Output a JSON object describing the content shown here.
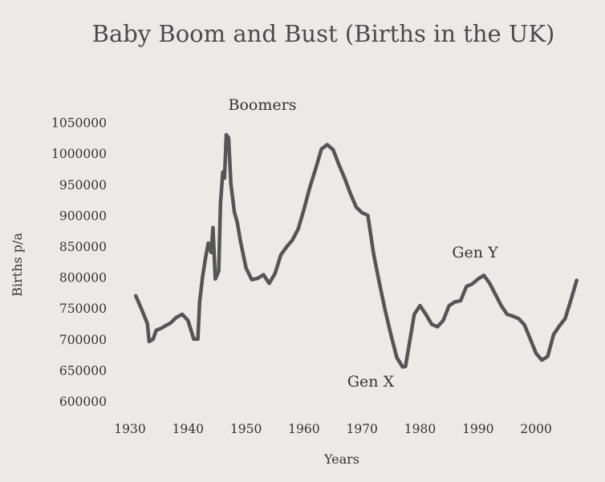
{
  "chart_data": {
    "type": "line",
    "title": "Baby Boom and Bust (Births in the UK)",
    "xlabel": "Years",
    "ylabel": "Births p/a",
    "xlim": [
      1930,
      2007
    ],
    "ylim": [
      600000,
      1050000
    ],
    "xticks": [
      "1930",
      "1940",
      "1950",
      "1960",
      "1970",
      "1980",
      "1990",
      "2000"
    ],
    "yticks": [
      "600000",
      "650000",
      "700000",
      "750000",
      "800000",
      "850000",
      "900000",
      "950000",
      "1000000",
      "1050000"
    ],
    "grid": false,
    "legend": "none",
    "series": [
      {
        "name": "",
        "color": "#555555",
        "x": [
          1931,
          1932,
          1933,
          1933.3,
          1934,
          1934.5,
          1935.5,
          1936,
          1937,
          1938,
          1939,
          1940,
          1941,
          1941.7,
          1942,
          1942.5,
          1943,
          1943.5,
          1944,
          1944.3,
          1944.7,
          1945,
          1945.3,
          1945.6,
          1946,
          1946.3,
          1946.6,
          1947,
          1947.4,
          1948,
          1948.5,
          1949,
          1950,
          1951,
          1952,
          1953,
          1954,
          1955,
          1956,
          1957,
          1958,
          1959,
          1960,
          1961,
          1962,
          1963,
          1964,
          1965,
          1966,
          1967,
          1968,
          1969,
          1970,
          1971,
          1972,
          1973,
          1974,
          1975,
          1976,
          1977,
          1977.5,
          1978,
          1979,
          1980,
          1981,
          1982,
          1983,
          1984,
          1985,
          1986,
          1987,
          1988,
          1989,
          1990,
          1991,
          1992,
          1993,
          1994,
          1995,
          1996,
          1997,
          1998,
          1999,
          2000,
          2001,
          2002,
          2003,
          2004,
          2005,
          2006,
          2007
        ],
        "values": [
          770000,
          748000,
          725000,
          696000,
          700000,
          714000,
          718000,
          721000,
          726000,
          735000,
          740000,
          730000,
          700000,
          700000,
          760000,
          800000,
          830000,
          855000,
          840000,
          880000,
          797000,
          803000,
          810000,
          920000,
          970000,
          960000,
          1030000,
          1025000,
          950000,
          905000,
          888000,
          860000,
          815000,
          796000,
          798000,
          804000,
          790000,
          806000,
          836000,
          849000,
          860000,
          878000,
          910000,
          945000,
          975000,
          1007000,
          1014000,
          1006000,
          982000,
          960000,
          935000,
          913000,
          904000,
          900000,
          837000,
          790000,
          746000,
          706000,
          670000,
          655000,
          656000,
          684000,
          740000,
          754000,
          740000,
          724000,
          720000,
          730000,
          754000,
          760000,
          762000,
          785000,
          789000,
          797000,
          803000,
          790000,
          772000,
          754000,
          740000,
          737000,
          733000,
          723000,
          700000,
          677000,
          666000,
          672000,
          707000,
          721000,
          733000,
          763000,
          795000
        ]
      }
    ],
    "annotations": [
      "Boomers",
      "Gen X",
      "Gen Y"
    ]
  }
}
